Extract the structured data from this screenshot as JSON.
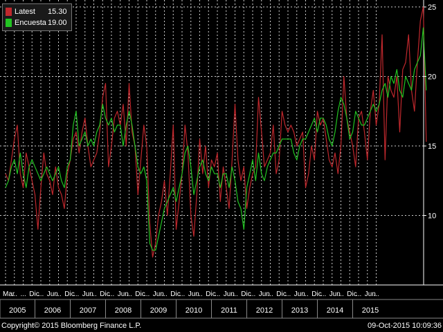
{
  "legend": [
    {
      "name": "Latest",
      "value": "15.30",
      "color": "#c0282d"
    },
    {
      "name": "Encuesta",
      "value": "19.00",
      "color": "#22c422"
    }
  ],
  "footer": {
    "copyright": "Copyright© 2015 Bloomberg Finance L.P.",
    "timestamp": "09-Oct-2015 10:09:36"
  },
  "chart_data": {
    "type": "line",
    "ylim": [
      5,
      25.5
    ],
    "y_ticks": [
      10,
      15,
      20,
      25
    ],
    "grid": true,
    "legend_position": "top-left",
    "years": [
      "2005",
      "2006",
      "2007",
      "2008",
      "2009",
      "2010",
      "2011",
      "2012",
      "2013",
      "2014",
      "2015"
    ],
    "month_ticks": [
      "Mar",
      "...",
      "...",
      "Dic",
      "...",
      "Jun",
      "...",
      "Dic",
      "...",
      "Jun",
      "...",
      "Dic",
      "...",
      "Jun",
      "...",
      "Dic",
      "...",
      "Jun",
      "...",
      "Dic",
      "...",
      "Jun",
      "...",
      "Dic",
      "...",
      "Jun",
      "...",
      "Dic",
      "...",
      "Jun",
      "...",
      "Dic",
      "...",
      "Jun",
      "...",
      "Dic",
      "...",
      "Jun",
      "...",
      "Dic",
      "...",
      "Jun",
      "..."
    ],
    "x_start": "2005-03",
    "series": [
      {
        "name": "Latest",
        "color": "#c0282d",
        "values": [
          13,
          12.5,
          14,
          15.5,
          16.5,
          13,
          12,
          14.5,
          13.5,
          12.5,
          11.5,
          9,
          12,
          14.5,
          13,
          12.5,
          11.5,
          13.5,
          12,
          11.5,
          10.5,
          13,
          14,
          15.5,
          16,
          14.5,
          16,
          17,
          15,
          13.5,
          14,
          14.5,
          16,
          18.5,
          19.5,
          13.5,
          15,
          17,
          17.5,
          16.5,
          18,
          15,
          19.5,
          16,
          15,
          11.5,
          14,
          16.5,
          15,
          9.5,
          7,
          8,
          10,
          11,
          12.5,
          10,
          13,
          16.5,
          9,
          11,
          13,
          16.5,
          14.5,
          10,
          8.5,
          11.5,
          15.5,
          13,
          15,
          12,
          14,
          13.5,
          14.5,
          11,
          13.5,
          12,
          10.5,
          14,
          18,
          14,
          12.5,
          13.5,
          10.5,
          12,
          13,
          13.5,
          18.5,
          16,
          13.5,
          14,
          14.5,
          16.5,
          13,
          14,
          17.5,
          16.5,
          16,
          16.5,
          16,
          15,
          15.5,
          16,
          12,
          13,
          15,
          14,
          17.5,
          16.5,
          17,
          15.5,
          14,
          13.5,
          14.5,
          13,
          15,
          20,
          17,
          16,
          15,
          13.5,
          17,
          17.5,
          16,
          14,
          17.5,
          19,
          16.5,
          18,
          23,
          14,
          20,
          19,
          18.5,
          20,
          16,
          20.5,
          21,
          23,
          19,
          17.5,
          21,
          24,
          25,
          15.3
        ]
      },
      {
        "name": "Encuesta",
        "color": "#22c422",
        "values": [
          12,
          12.5,
          13.5,
          14,
          13,
          14.5,
          13,
          12,
          13.5,
          14,
          13.5,
          13,
          12.5,
          13,
          13.5,
          13,
          12.5,
          13,
          13.5,
          12.5,
          12,
          13.5,
          14,
          16.5,
          17.5,
          15,
          15.5,
          16,
          15,
          15.5,
          15,
          16,
          16.5,
          18,
          17,
          16.5,
          17,
          16,
          16.5,
          16.5,
          15,
          16.5,
          17.5,
          16.5,
          15,
          13.5,
          13,
          13.5,
          12.5,
          8,
          7.5,
          7.5,
          8.5,
          9.5,
          10.5,
          11,
          11.5,
          12,
          11,
          12,
          13,
          14.5,
          15,
          13.5,
          11.5,
          12.5,
          13.5,
          14,
          13,
          12.5,
          13.5,
          13,
          13,
          12,
          13,
          13,
          12,
          13.5,
          12.5,
          11,
          10.5,
          9,
          12,
          13,
          14,
          12.5,
          14.5,
          13,
          12.5,
          13.5,
          14,
          14.5,
          14.5,
          15,
          15.5,
          15.5,
          15.5,
          15.5,
          14.5,
          14,
          15,
          15.5,
          15.5,
          16,
          16.5,
          17,
          16,
          17,
          17,
          16.5,
          15.5,
          15,
          16,
          17.5,
          18.5,
          18,
          17,
          15.5,
          16,
          17.5,
          17,
          16.5,
          16.5,
          17,
          17.5,
          18,
          17.5,
          18,
          19,
          19.5,
          18.5,
          20,
          19.5,
          20.5,
          19,
          18.5,
          20,
          19.5,
          19,
          20.5,
          21,
          21.5,
          23.5,
          19
        ]
      }
    ]
  }
}
